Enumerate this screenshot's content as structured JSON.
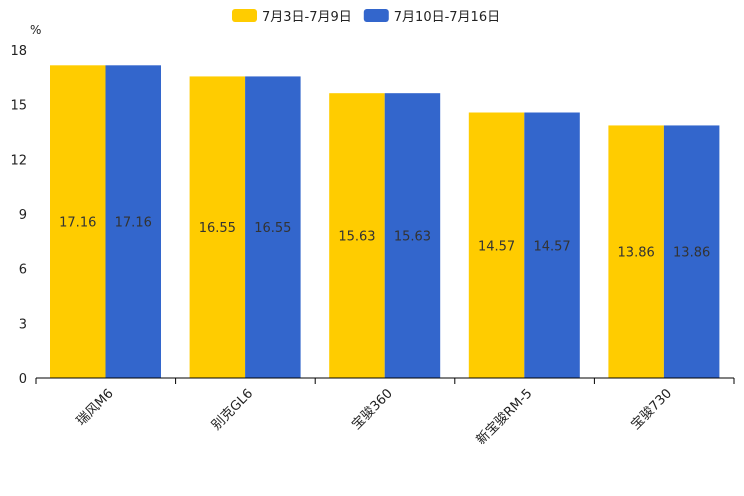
{
  "chart_data": {
    "type": "bar",
    "unit_label": "%",
    "categories": [
      "瑞风M6",
      "别克GL6",
      "宝骏360",
      "新宝骏RM-5",
      "宝骏730"
    ],
    "series": [
      {
        "name": "7月3日-7月9日",
        "color": "#FFCC00",
        "values": [
          17.16,
          16.55,
          15.63,
          14.57,
          13.86
        ]
      },
      {
        "name": "7月10日-7月16日",
        "color": "#3366CC",
        "values": [
          17.16,
          16.55,
          15.63,
          14.57,
          13.86
        ]
      }
    ],
    "ylim": [
      0,
      18
    ],
    "yticks": [
      0,
      3,
      6,
      9,
      12,
      15,
      18
    ],
    "legend_position": "top-center",
    "grid": false
  }
}
